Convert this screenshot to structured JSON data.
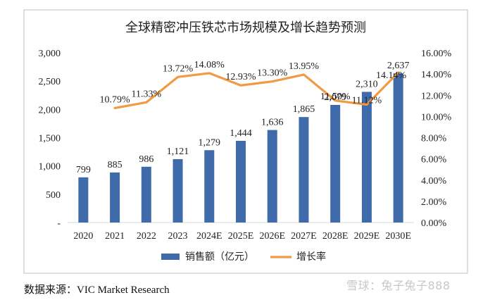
{
  "source_note": "数据来源：VIC Market Research",
  "watermark": "雪球：兔子兔子888",
  "colors": {
    "bar": "#3F6BAA",
    "line": "#F19A43",
    "frame": "#bfbfbf",
    "text": "#222222"
  },
  "chart_data": {
    "type": "bar",
    "title": "全球精密冲压铁芯市场规模及增长趋势预测",
    "categories": [
      "2020",
      "2021",
      "2022",
      "2023",
      "2024E",
      "2025E",
      "2026E",
      "2027E",
      "2028E",
      "2029E",
      "2030E"
    ],
    "series": [
      {
        "name": "销售额（亿元）",
        "type": "bar",
        "axis": "left",
        "values": [
          799,
          885,
          986,
          1121,
          1279,
          1444,
          1636,
          1865,
          2079,
          2310,
          2637
        ],
        "labels": [
          "799",
          "885",
          "986",
          "1,121",
          "1,279",
          "1,444",
          "1,636",
          "1,865",
          "2,079",
          "2,310",
          "2,637"
        ]
      },
      {
        "name": "增长率",
        "type": "line",
        "axis": "right",
        "values": [
          null,
          10.79,
          11.33,
          13.72,
          14.08,
          12.93,
          13.3,
          13.95,
          11.5,
          11.12,
          14.14
        ],
        "labels": [
          "",
          "10.79%",
          "11.33%",
          "13.72%",
          "14.08%",
          "12.93%",
          "13.30%",
          "13.95%",
          "11.50%",
          "11.12%",
          "14.14%"
        ]
      }
    ],
    "y_left": {
      "range": [
        0,
        3000
      ],
      "ticks": [
        0,
        500,
        1000,
        1500,
        2000,
        2500,
        3000
      ],
      "tick_labels": [
        "-",
        "500",
        "1,000",
        "1,500",
        "2,000",
        "2,500",
        "3,000"
      ]
    },
    "y_right": {
      "range": [
        0,
        16
      ],
      "ticks": [
        0,
        2,
        4,
        6,
        8,
        10,
        12,
        14,
        16
      ],
      "tick_labels": [
        "0.00%",
        "2.00%",
        "4.00%",
        "6.00%",
        "8.00%",
        "10.00%",
        "12.00%",
        "14.00%",
        "16.00%"
      ]
    },
    "grid": false,
    "legend_position": "bottom"
  }
}
